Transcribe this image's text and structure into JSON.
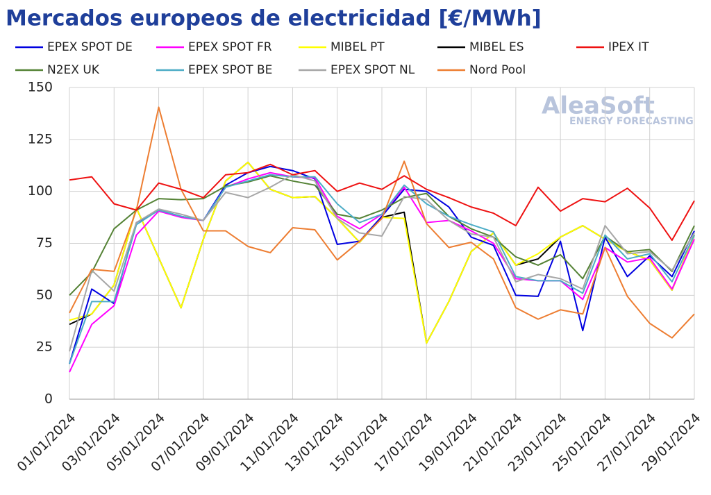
{
  "chart_data": {
    "type": "line",
    "title": "Mercados europeos de electricidad [€/MWh]",
    "annotations": [
      "AleaSoft",
      "ENERGY FORECASTING"
    ],
    "categories": [
      "01/01/2024",
      null,
      "03/01/2024",
      null,
      "05/01/2024",
      null,
      "07/01/2024",
      null,
      "09/01/2024",
      null,
      "11/01/2024",
      null,
      "13/01/2024",
      null,
      "15/01/2024",
      null,
      "17/01/2024",
      null,
      "19/01/2024",
      null,
      "21/01/2024",
      null,
      "23/01/2024",
      null,
      "25/01/2024",
      null,
      "27/01/2024",
      null,
      "29/01/2024"
    ],
    "ylim": [
      0,
      150
    ],
    "yticks": [
      0,
      25,
      50,
      75,
      100,
      125,
      150
    ],
    "grid": true,
    "series": [
      {
        "name": "EPEX SPOT DE",
        "color": "#0000e0",
        "values": [
          17,
          53,
          46,
          85,
          91,
          88,
          86,
          103,
          109,
          112,
          110,
          106,
          74.5,
          76,
          88,
          101,
          100,
          92.5,
          78,
          74,
          50,
          49.5,
          76,
          33,
          78,
          59,
          69,
          59,
          81
        ]
      },
      {
        "name": "EPEX SPOT FR",
        "color": "#ff00ff",
        "values": [
          13,
          36,
          45,
          79,
          90.5,
          87.5,
          86,
          102,
          106,
          109,
          107,
          106.5,
          88,
          82,
          89,
          102,
          85,
          86,
          81,
          75,
          58,
          57,
          57,
          48,
          73,
          66,
          68,
          53,
          77
        ]
      },
      {
        "name": "MIBEL PT",
        "color": "#ffff00",
        "values": [
          38,
          41,
          55,
          92,
          68,
          44,
          77,
          105,
          114,
          101,
          97,
          97.5,
          87,
          75.5,
          87.5,
          87,
          27,
          47,
          71,
          80,
          64.5,
          70,
          78,
          83.5,
          77,
          71,
          67,
          52.5,
          79
        ]
      },
      {
        "name": "MIBEL ES",
        "color": "#000000",
        "values": [
          36,
          41,
          55,
          92,
          68,
          44,
          77,
          105,
          114,
          101,
          97,
          97.5,
          87,
          75.5,
          87.5,
          90,
          27,
          47,
          71,
          80,
          64.5,
          67.5,
          78,
          83.5,
          77,
          71,
          67,
          52.5,
          79
        ]
      },
      {
        "name": "IPEX IT",
        "color": "#ee1111",
        "values": [
          105.5,
          107,
          94,
          91,
          104,
          101,
          97,
          108,
          109,
          113,
          108,
          110,
          100,
          104,
          101,
          107.5,
          101,
          97,
          92.5,
          89.5,
          83.5,
          102,
          90.5,
          96.5,
          95,
          101.5,
          92,
          76.5,
          95.5
        ]
      },
      {
        "name": "N2EX UK",
        "color": "#548235",
        "values": [
          50,
          61,
          82,
          91,
          96.5,
          96,
          96.5,
          102.5,
          104.5,
          107.5,
          105,
          103,
          89,
          87,
          91,
          97,
          99,
          88,
          82,
          78,
          68.5,
          64.5,
          69.5,
          58,
          78.5,
          71,
          72,
          61.5,
          83.5
        ]
      },
      {
        "name": "EPEX SPOT BE",
        "color": "#4bacc6",
        "values": [
          17,
          47,
          47,
          84,
          91,
          88,
          86,
          102,
          105,
          108,
          107,
          107,
          94,
          85,
          89,
          103,
          94,
          88,
          84,
          80.5,
          59,
          57,
          57,
          51,
          79,
          67.5,
          70,
          56.5,
          79
        ]
      },
      {
        "name": "EPEX SPOT NL",
        "color": "#a6a6a6",
        "values": [
          23,
          62,
          52,
          85,
          91.5,
          89,
          86,
          99.5,
          97,
          102,
          108,
          105,
          87,
          80,
          78.5,
          97.5,
          96,
          86,
          79.5,
          78,
          56.5,
          60,
          58,
          53,
          83.5,
          70,
          71,
          62,
          80
        ]
      },
      {
        "name": "Nord Pool",
        "color": "#ed7d31",
        "values": [
          41.5,
          62.5,
          61.5,
          91,
          140.5,
          101,
          81,
          81,
          73.5,
          70.5,
          82.5,
          81.5,
          67,
          76,
          87,
          114.5,
          84.5,
          73,
          75.5,
          67.5,
          44,
          38.5,
          43,
          41,
          73,
          49.5,
          36.5,
          29.5,
          41
        ]
      }
    ]
  }
}
